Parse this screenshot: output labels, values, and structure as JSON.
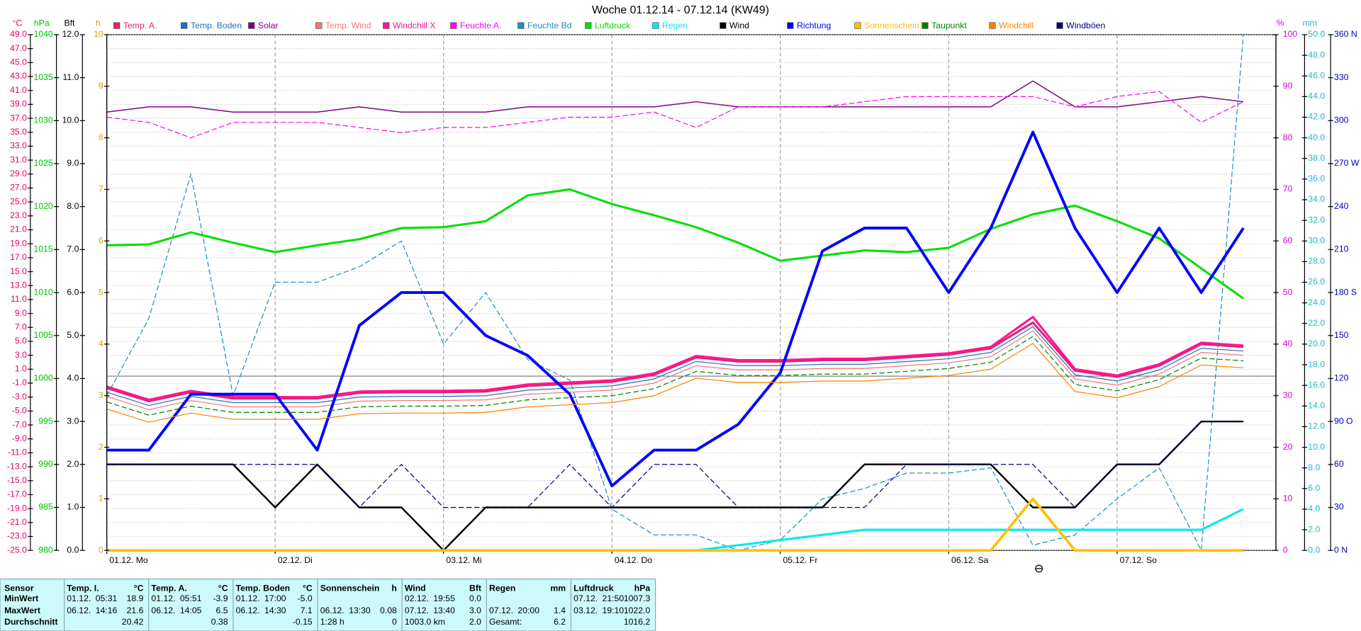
{
  "chart_data": {
    "type": "line",
    "title": "Woche 01.12.14 - 07.12.14 (KW49)",
    "grid": true,
    "categories": [
      "01.12. Mo",
      null,
      null,
      null,
      "02.12. Di",
      null,
      null,
      null,
      "03.12. Mi",
      null,
      null,
      null,
      "04.12. Do",
      null,
      null,
      null,
      "05.12. Fr",
      null,
      null,
      null,
      "06.12. Sa",
      null,
      null,
      null,
      "07.12. So",
      null,
      null,
      null
    ],
    "axes": [
      {
        "label": "°C",
        "side": "left",
        "color": "#e8006e",
        "lim": [
          -25,
          49
        ],
        "ticks": [
          {
            "value": 49,
            "label": "49.0"
          },
          {
            "value": 47,
            "label": "47.0"
          },
          {
            "value": 45,
            "label": "45.0"
          },
          {
            "value": 43,
            "label": "43.0"
          },
          {
            "value": 41,
            "label": "41.0"
          },
          {
            "value": 39,
            "label": "39.0"
          },
          {
            "value": 37,
            "label": "37.0"
          },
          {
            "value": 35,
            "label": "35.0"
          },
          {
            "value": 33,
            "label": "33.0"
          },
          {
            "value": 31,
            "label": "31.0"
          },
          {
            "value": 29,
            "label": "29.0"
          },
          {
            "value": 27,
            "label": "27.0"
          },
          {
            "value": 25,
            "label": "25.0"
          },
          {
            "value": 23,
            "label": "23.0"
          },
          {
            "value": 21,
            "label": "21.0"
          },
          {
            "value": 19,
            "label": "19.0"
          },
          {
            "value": 17,
            "label": "17.0"
          },
          {
            "value": 15,
            "label": "15.0"
          },
          {
            "value": 13,
            "label": "13.0"
          },
          {
            "value": 11,
            "label": "11.0"
          },
          {
            "value": 9,
            "label": "9.0"
          },
          {
            "value": 7,
            "label": "7.0"
          },
          {
            "value": 5,
            "label": "5.0"
          },
          {
            "value": 3,
            "label": "3.0"
          },
          {
            "value": 1,
            "label": "1.0"
          },
          {
            "value": -1,
            "label": "-1.0"
          },
          {
            "value": -3,
            "label": "-3.0"
          },
          {
            "value": -5,
            "label": "-5.0"
          },
          {
            "value": -7,
            "label": "-7.0"
          },
          {
            "value": -9,
            "label": "-9.0"
          },
          {
            "value": -11,
            "label": "-11.0"
          },
          {
            "value": -13,
            "label": "-13.0"
          },
          {
            "value": -15,
            "label": "-15.0"
          },
          {
            "value": -17,
            "label": "-17.0"
          },
          {
            "value": -19,
            "label": "-19.0"
          },
          {
            "value": -21,
            "label": "-21.0"
          },
          {
            "value": -23,
            "label": "-23.0"
          },
          {
            "value": -25,
            "label": "-25.0"
          }
        ]
      },
      {
        "label": "hPa",
        "side": "left",
        "color": "#00c000",
        "lim": [
          980,
          1040
        ],
        "ticks": [
          1040,
          1035,
          1030,
          1025,
          1020,
          1015,
          1010,
          1005,
          1000,
          995,
          990,
          985,
          980
        ]
      },
      {
        "label": "Bft",
        "side": "left",
        "color": "#000000",
        "lim": [
          0,
          12
        ],
        "ticks": [
          {
            "value": 12,
            "label": "12.0"
          },
          {
            "value": 11,
            "label": "11.0"
          },
          {
            "value": 10,
            "label": "10.0"
          },
          {
            "value": 9,
            "label": "9.0"
          },
          {
            "value": 8,
            "label": "8.0"
          },
          {
            "value": 7,
            "label": "7.0"
          },
          {
            "value": 6,
            "label": "6.0"
          },
          {
            "value": 5,
            "label": "5.0"
          },
          {
            "value": 4,
            "label": "4.0"
          },
          {
            "value": 3,
            "label": "3.0"
          },
          {
            "value": 2,
            "label": "2.0"
          },
          {
            "value": 1,
            "label": "1.0"
          },
          {
            "value": 0,
            "label": "0.0"
          }
        ]
      },
      {
        "label": "h",
        "side": "left",
        "color": "#e0a000",
        "lim": [
          0,
          10
        ],
        "ticks": [
          10,
          9,
          8,
          7,
          6,
          5,
          4,
          3,
          2,
          1,
          0
        ]
      },
      {
        "label": "%",
        "side": "right",
        "color": "#e000e0",
        "lim": [
          0,
          100
        ],
        "ticks": [
          100,
          90,
          80,
          70,
          60,
          50,
          40,
          30,
          20,
          10,
          0
        ]
      },
      {
        "label": "mm",
        "side": "right",
        "color": "#20b8d0",
        "lim": [
          0,
          50
        ],
        "ticks": [
          {
            "value": 50,
            "label": "50.0"
          },
          {
            "value": 48,
            "label": "48.0"
          },
          {
            "value": 46,
            "label": "46.0"
          },
          {
            "value": 44,
            "label": "44.0"
          },
          {
            "value": 42,
            "label": "42.0"
          },
          {
            "value": 40,
            "label": "40.0"
          },
          {
            "value": 38,
            "label": "38.0"
          },
          {
            "value": 36,
            "label": "36.0"
          },
          {
            "value": 34,
            "label": "34.0"
          },
          {
            "value": 32,
            "label": "32.0"
          },
          {
            "value": 30,
            "label": "30.0"
          },
          {
            "value": 28,
            "label": "28.0"
          },
          {
            "value": 26,
            "label": "26.0"
          },
          {
            "value": 24,
            "label": "24.0"
          },
          {
            "value": 22,
            "label": "22.0"
          },
          {
            "value": 20,
            "label": "20.0"
          },
          {
            "value": 18,
            "label": "18.0"
          },
          {
            "value": 16,
            "label": "16.0"
          },
          {
            "value": 14,
            "label": "14.0"
          },
          {
            "value": 12,
            "label": "12.0"
          },
          {
            "value": 10,
            "label": "10.0"
          },
          {
            "value": 8,
            "label": "8.0"
          },
          {
            "value": 6,
            "label": "6.0"
          },
          {
            "value": 4,
            "label": "4.0"
          },
          {
            "value": 2,
            "label": "2.0"
          },
          {
            "value": 0,
            "label": "0.0"
          }
        ]
      },
      {
        "side": "right",
        "color": "#0000c0",
        "lim": [
          0,
          360
        ],
        "ticks": [
          {
            "value": 360,
            "label": "360 N"
          },
          330,
          300,
          {
            "value": 270,
            "label": "270 W"
          },
          240,
          210,
          {
            "value": 180,
            "label": "180 S"
          },
          150,
          120,
          {
            "value": 90,
            "label": "90 O"
          },
          60,
          30,
          {
            "value": 0,
            "label": "0 N"
          }
        ]
      }
    ],
    "series": [
      {
        "name": "Temp. A.",
        "color": "#e8206e",
        "axis": 0,
        "values": [
          -1.7,
          -3.6,
          -2.3,
          -3.2,
          -3.2,
          -3.2,
          -2.4,
          -2.3,
          -2.3,
          -2.2,
          -1.4,
          -1.1,
          -0.8,
          0.2,
          2.7,
          2.1,
          2.1,
          2.3,
          2.3,
          2.7,
          3.1,
          4.0,
          7.7,
          0.8,
          -0.1,
          1.5,
          4.6,
          4.2
        ]
      },
      {
        "name": "Temp. Boden",
        "color": "#2070c0",
        "axis": 0,
        "values": [
          -2.3,
          -4.2,
          -2.9,
          -3.8,
          -3.8,
          -3.8,
          -3.0,
          -2.9,
          -2.9,
          -2.8,
          -2.0,
          -1.7,
          -1.4,
          -0.4,
          2.1,
          1.5,
          1.5,
          1.7,
          1.7,
          2.1,
          2.5,
          3.4,
          7.1,
          0.2,
          -0.7,
          0.9,
          4.0,
          3.6
        ]
      },
      {
        "name": "Solar",
        "color": "#800080",
        "axis": 4,
        "values": [
          85,
          86,
          86,
          85,
          85,
          85,
          86,
          85,
          85,
          85,
          86,
          86,
          86,
          86,
          87,
          86,
          86,
          86,
          86,
          86,
          86,
          86,
          91,
          86,
          86,
          87,
          88,
          87
        ]
      },
      {
        "name": "Temp. Wind",
        "color": "#f07878",
        "axis": 0,
        "values": [
          -2.9,
          -4.8,
          -3.5,
          -4.4,
          -4.4,
          -4.4,
          -3.6,
          -3.5,
          -3.5,
          -3.4,
          -2.6,
          -2.3,
          -2.0,
          -1.0,
          1.5,
          0.9,
          0.9,
          1.1,
          1.1,
          1.5,
          1.9,
          2.8,
          6.5,
          -0.4,
          -1.3,
          0.3,
          3.4,
          3.0
        ]
      },
      {
        "name": "Windchill X",
        "color": "#ff1493",
        "axis": 0,
        "values": [
          -1.5,
          -3.4,
          -2.1,
          -3.0,
          -3.0,
          -3.0,
          -2.2,
          -2.1,
          -2.1,
          -2.0,
          -1.2,
          -0.9,
          -0.6,
          0.4,
          2.9,
          2.3,
          2.3,
          2.5,
          2.5,
          2.9,
          3.3,
          4.2,
          8.5,
          1.0,
          0.1,
          1.7,
          4.8,
          4.4
        ]
      },
      {
        "name": "Feuchte A.",
        "color": "#ff00ff",
        "axis": 4,
        "style": "dashed",
        "values": [
          84,
          83,
          80,
          83,
          83,
          83,
          82,
          81,
          82,
          82,
          83,
          84,
          84,
          85,
          82,
          86,
          86,
          86,
          87,
          88,
          88,
          88,
          88,
          86,
          88,
          89,
          83,
          87
        ]
      },
      {
        "name": "Feuchte Bd",
        "color": "#2090c0",
        "axis": 4,
        "style": "dashed",
        "values": [
          30,
          45,
          73,
          30,
          52,
          52,
          55,
          60,
          40,
          50,
          37,
          33,
          8,
          3,
          3,
          0,
          2,
          10,
          12,
          15,
          15,
          16,
          1,
          3,
          10,
          16,
          0,
          100
        ]
      },
      {
        "name": "Luftdruck",
        "color": "#00e000",
        "axis": 1,
        "values": [
          1015.5,
          1015.6,
          1017.0,
          1015.8,
          1014.7,
          1015.5,
          1016.2,
          1017.5,
          1017.6,
          1018.3,
          1021.3,
          1022.0,
          1020.3,
          1019.0,
          1017.6,
          1015.8,
          1013.7,
          1014.3,
          1014.9,
          1014.7,
          1015.2,
          1017.4,
          1019.1,
          1020.1,
          1018.3,
          1016.3,
          1012.8,
          1009.3
        ]
      },
      {
        "name": "Regen",
        "color": "#00e8f0",
        "axis": 5,
        "values": [
          0,
          0,
          0,
          0,
          0,
          0,
          0,
          0,
          0,
          0,
          0,
          0,
          0,
          0,
          0,
          0.5,
          1.0,
          1.5,
          2.0,
          2.0,
          2.0,
          2.0,
          2.0,
          2.0,
          2.0,
          2.0,
          2.0,
          4.0
        ]
      },
      {
        "name": "Wind",
        "color": "#000000",
        "axis": 2,
        "values": [
          2,
          2,
          2,
          2,
          1,
          2,
          1,
          1,
          0,
          1,
          1,
          1,
          1,
          1,
          1,
          1,
          1,
          1,
          2,
          2,
          2,
          2,
          1,
          1,
          2,
          2,
          3,
          3
        ]
      },
      {
        "name": "Richtung",
        "color": "#0000ff",
        "axis": 6,
        "values": [
          70,
          70,
          109,
          109,
          109,
          70,
          157,
          180,
          180,
          150,
          136,
          109,
          45,
          70,
          70,
          88,
          124,
          209,
          225,
          225,
          180,
          225,
          292,
          225,
          180,
          225,
          180,
          225
        ]
      },
      {
        "name": "Sonnenschein",
        "color": "#ffc000",
        "axis": 3,
        "values": [
          0,
          0,
          0,
          0,
          0,
          0,
          0,
          0,
          0,
          0,
          0,
          0,
          0,
          0,
          0,
          0,
          0,
          0,
          0,
          0,
          0,
          0,
          1.0,
          0,
          0,
          0,
          0,
          0
        ]
      },
      {
        "name": "Taupunkt",
        "color": "#008000",
        "axis": 0,
        "style": "dashed",
        "values": [
          -3.7,
          -5.6,
          -4.3,
          -5.2,
          -5.2,
          -5.2,
          -4.4,
          -4.3,
          -4.3,
          -4.2,
          -3.4,
          -3.1,
          -2.8,
          -1.8,
          0.7,
          0.1,
          0.1,
          0.3,
          0.3,
          0.7,
          1.1,
          2.0,
          5.7,
          -1.2,
          -2.1,
          -0.5,
          2.6,
          2.2
        ]
      },
      {
        "name": "Windchill",
        "color": "#ff8000",
        "axis": 0,
        "values": [
          -4.7,
          -6.6,
          -5.3,
          -6.2,
          -6.2,
          -6.2,
          -5.4,
          -5.3,
          -5.3,
          -5.2,
          -4.4,
          -4.1,
          -3.8,
          -2.8,
          -0.3,
          -0.9,
          -0.9,
          -0.7,
          -0.7,
          -0.3,
          0.1,
          1.0,
          4.7,
          -2.2,
          -3.1,
          -1.5,
          1.6,
          1.2
        ]
      },
      {
        "name": "Windböen",
        "color": "#000080",
        "axis": 2,
        "style": "dashed",
        "values": [
          2,
          2,
          2,
          2,
          2,
          2,
          1,
          2,
          1,
          1,
          1,
          2,
          1,
          2,
          2,
          1,
          1,
          1,
          1,
          2,
          2,
          2,
          2,
          1,
          2,
          2,
          3,
          3
        ]
      }
    ]
  },
  "table": {
    "row_labels": [
      "Sensor",
      "MinWert",
      "MaxWert",
      "Durchschnitt"
    ],
    "columns": [
      {
        "name": "Temp. I.",
        "unit": "°C",
        "rows": [
          [
            "01.12.",
            "05:31",
            "18.9"
          ],
          [
            "06.12.",
            "14:16",
            "21.6"
          ],
          [
            null,
            null,
            "20.42"
          ]
        ]
      },
      {
        "name": "Temp. A.",
        "unit": "°C",
        "rows": [
          [
            "01.12.",
            "05:51",
            "-3.9"
          ],
          [
            "06.12.",
            "14:05",
            "6.5"
          ],
          [
            null,
            null,
            "0.38"
          ]
        ]
      },
      {
        "name": "Temp. Boden",
        "unit": "°C",
        "rows": [
          [
            "01.12.",
            "17:00",
            "-5.0"
          ],
          [
            "06.12.",
            "14:30",
            "7.1"
          ],
          [
            null,
            null,
            "-0.15"
          ]
        ]
      },
      {
        "name": "Sonnenschein",
        "unit": "h",
        "rows": [
          [
            null,
            null,
            null
          ],
          [
            "06.12.",
            "13:30",
            "0.08"
          ],
          [
            "1:28 h",
            null,
            "0"
          ]
        ]
      },
      {
        "name": "Wind",
        "unit": "Bft",
        "rows": [
          [
            "02.12.",
            "19:55",
            "0.0"
          ],
          [
            "07.12.",
            "13:40",
            "3.0"
          ],
          [
            "1003.0 km",
            null,
            "2.0"
          ]
        ]
      },
      {
        "name": "Regen",
        "unit": "mm",
        "rows": [
          [
            null,
            null,
            null
          ],
          [
            "07.12.",
            "20:00",
            "1.4"
          ],
          [
            "Gesamt:",
            null,
            "6.2"
          ]
        ]
      },
      {
        "name": "Luftdruck",
        "unit": "hPa",
        "rows": [
          [
            "07.12.",
            "21:50",
            "1007.3"
          ],
          [
            "03.12.",
            "19:10",
            "1022.0"
          ],
          [
            null,
            null,
            "1016.2"
          ]
        ]
      }
    ]
  }
}
